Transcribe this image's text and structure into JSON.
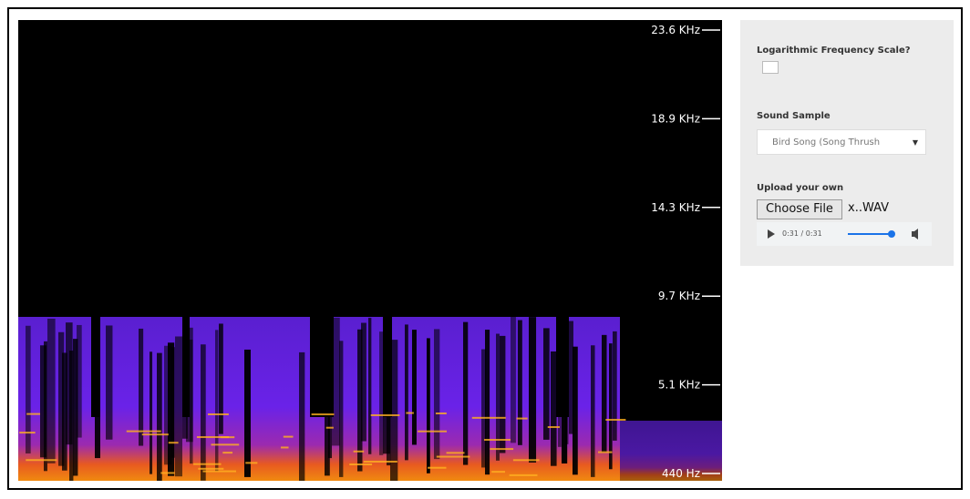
{
  "spectrogram": {
    "frequency_labels": [
      "23.6 KHz",
      "18.9 KHz",
      "14.3 KHz",
      "9.7 KHz",
      "5.1 KHz",
      "440 Hz"
    ]
  },
  "controls": {
    "log_scale_label": "Logarithmic Frequency Scale?",
    "sound_sample_label": "Sound Sample",
    "sound_sample_selected": "Bird Song (Song Thrush",
    "upload_label": "Upload your own",
    "choose_file_button": "Choose File",
    "file_name": "x..WAV",
    "audio_time": "0:31 / 0:31"
  }
}
